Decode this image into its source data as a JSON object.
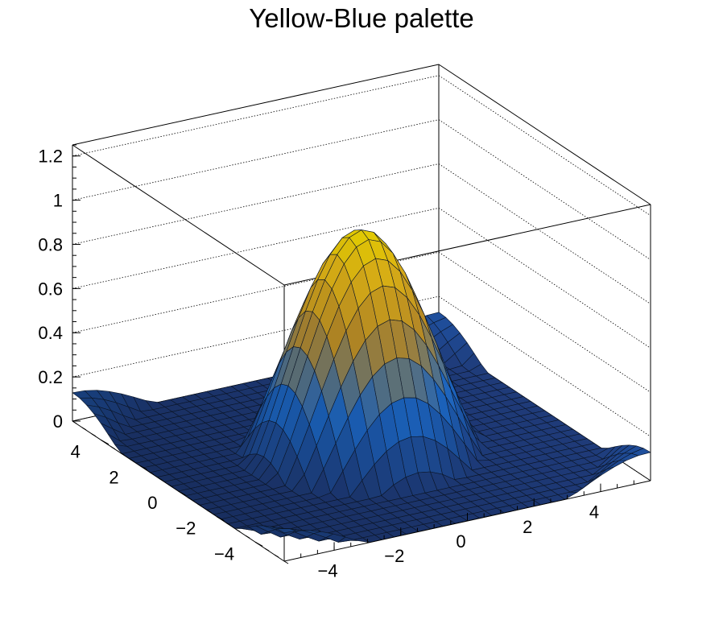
{
  "chart_data": {
    "type": "surface",
    "title": "Yellow-Blue palette",
    "function": "sin(r)/r, r = sqrt(x^2 + y^2)",
    "xlim": [
      -5.5,
      5.5
    ],
    "ylim": [
      -5.5,
      5.5
    ],
    "zlim": [
      0,
      1.25
    ],
    "x_ticks": [
      "−4",
      "−2",
      "0",
      "2",
      "4"
    ],
    "x_tick_values": [
      -4,
      -2,
      0,
      2,
      4
    ],
    "y_ticks": [
      "−4",
      "−2",
      "0",
      "2",
      "4"
    ],
    "y_tick_values": [
      -4,
      -2,
      0,
      2,
      4
    ],
    "z_ticks": [
      "0",
      "0.2",
      "0.4",
      "0.6",
      "0.8",
      "1",
      "1.2"
    ],
    "z_tick_values": [
      0,
      0.2,
      0.4,
      0.6,
      0.8,
      1.0,
      1.2
    ],
    "grid": true,
    "palette": [
      "#1f3b7a",
      "#1e6dd0",
      "#c8962a",
      "#f2c318",
      "#ffe600"
    ]
  }
}
